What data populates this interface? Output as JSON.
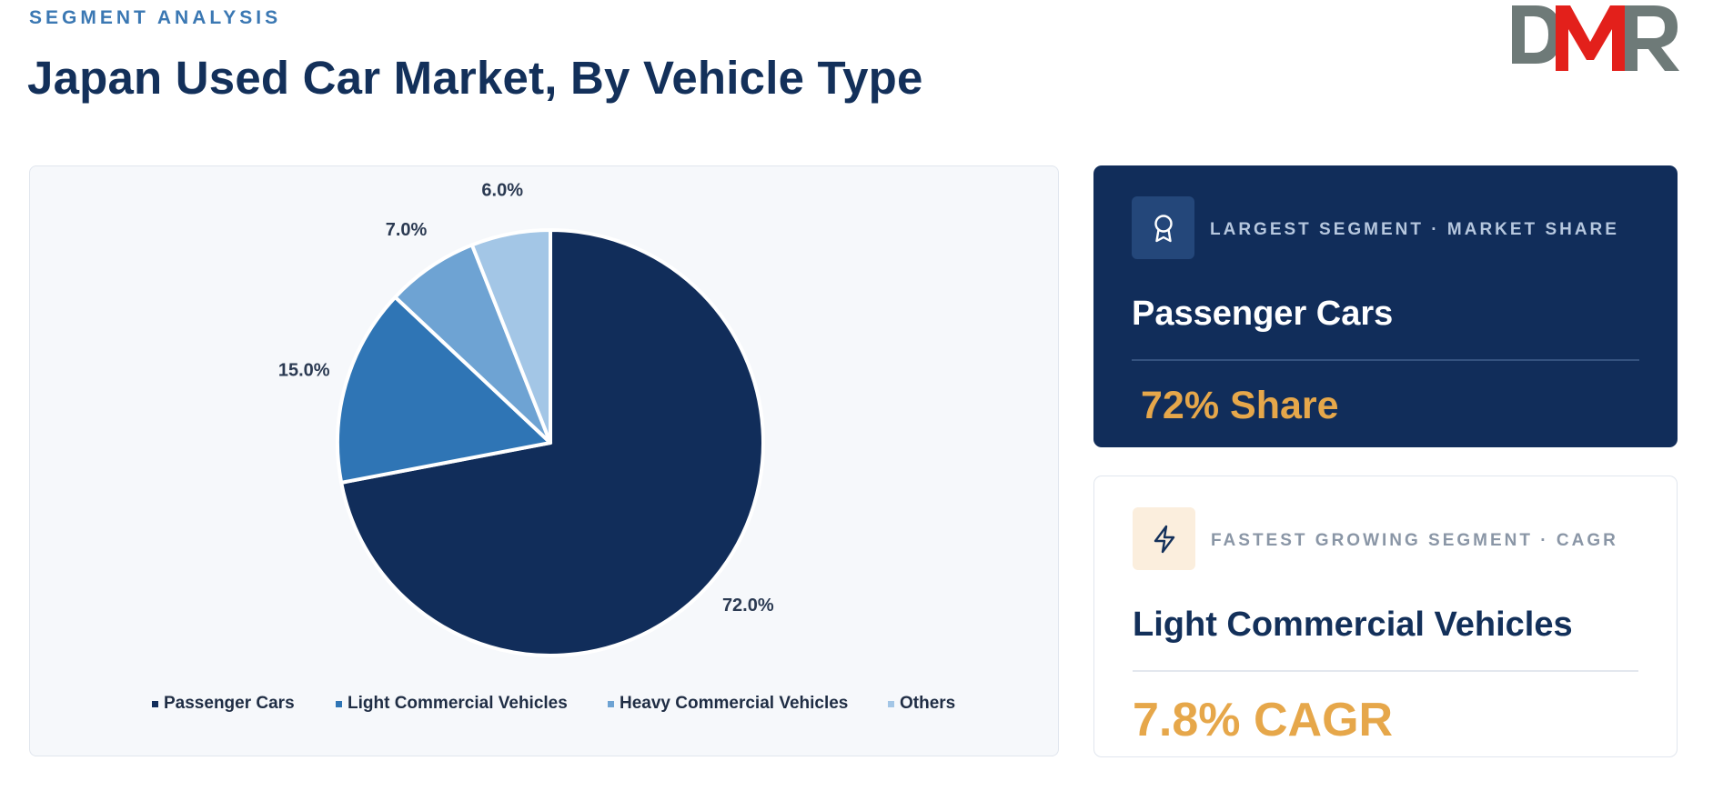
{
  "header": {
    "eyebrow": "SEGMENT ANALYSIS",
    "title": "Japan Used Car Market, By Vehicle Type",
    "logo_text": "DMR"
  },
  "colors": {
    "passenger": "#112d5a",
    "lcv": "#2f75b5",
    "hcv": "#6ea3d3",
    "others": "#a3c6e6",
    "accent": "#e6a74a",
    "logo_grey": "#6e7a78",
    "logo_red": "#e3201b"
  },
  "chart_data": {
    "type": "pie",
    "title": "",
    "categories": [
      "Passenger Cars",
      "Light Commercial Vehicles",
      "Heavy Commercial Vehicles",
      "Others"
    ],
    "values": [
      72.0,
      15.0,
      7.0,
      6.0
    ],
    "labels": [
      "72.0%",
      "15.0%",
      "7.0%",
      "6.0%"
    ],
    "legend_position": "bottom"
  },
  "cards": {
    "largest": {
      "icon": "award-icon",
      "kicker": "LARGEST SEGMENT · MARKET SHARE",
      "name": "Passenger Cars",
      "metric": "72% Share"
    },
    "fastest": {
      "icon": "lightning-icon",
      "kicker": "FASTEST GROWING SEGMENT · CAGR",
      "name": "Light Commercial Vehicles",
      "metric": "7.8% CAGR"
    }
  }
}
